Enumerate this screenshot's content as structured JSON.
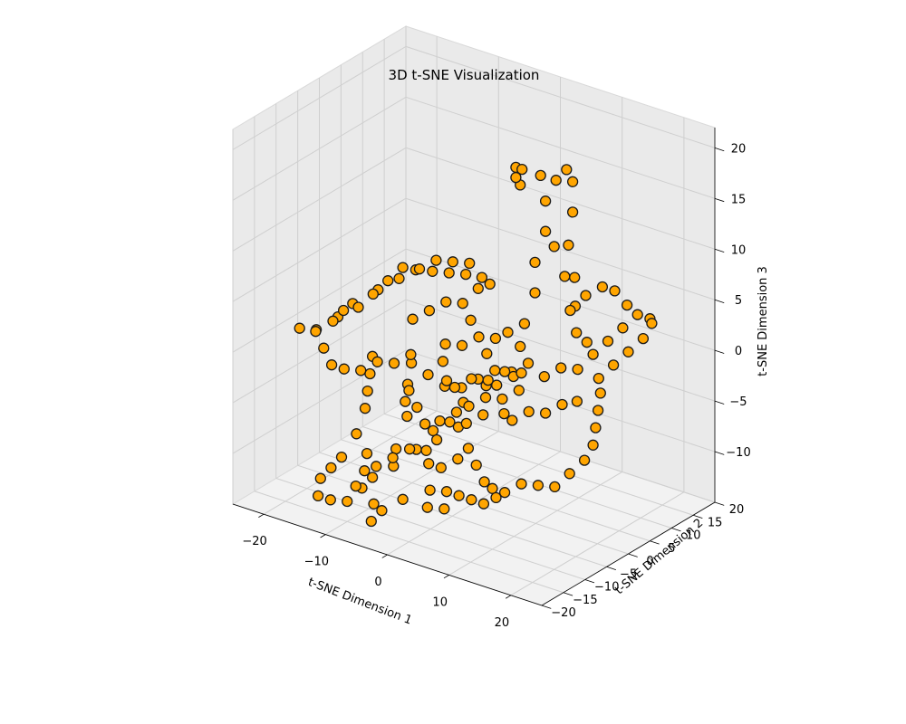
{
  "chart_data": {
    "type": "scatter",
    "projection": "3d",
    "title": "3D t-SNE Visualization",
    "xlabel": "t-SNE Dimension 1",
    "ylabel": "t-SNE Dimension 2",
    "zlabel": "t-SNE Dimension 3",
    "xlim": [
      -25,
      25
    ],
    "ylim": [
      -20,
      20
    ],
    "zlim": [
      -15,
      22
    ],
    "xticks": [
      -20,
      -10,
      0,
      10,
      20
    ],
    "yticks": [
      -20,
      -15,
      -10,
      -5,
      0,
      5,
      10,
      15,
      20
    ],
    "zticks": [
      -10,
      -5,
      0,
      5,
      10,
      15,
      20
    ],
    "grid": true,
    "marker_color": "#FFA500",
    "marker_edge_color": "#1a1a1a",
    "points": [
      [
        -24,
        -6,
        -1
      ],
      [
        -22,
        -5,
        -1
      ],
      [
        -20,
        -4,
        0
      ],
      [
        -19,
        -3,
        1
      ],
      [
        -18,
        -1,
        1
      ],
      [
        -17,
        1,
        2
      ],
      [
        -16,
        3,
        3
      ],
      [
        -15,
        5,
        4
      ],
      [
        -13,
        6,
        4
      ],
      [
        -11,
        7,
        5
      ],
      [
        -9,
        8,
        5
      ],
      [
        -7,
        9,
        5
      ],
      [
        -5,
        9,
        4
      ],
      [
        -3,
        8,
        4
      ],
      [
        -20,
        -8,
        0
      ],
      [
        -18,
        -9,
        -1
      ],
      [
        -16,
        -10,
        -2
      ],
      [
        -14,
        -10,
        -2
      ],
      [
        -12,
        -9,
        -2
      ],
      [
        -10,
        -8,
        -1
      ],
      [
        -8,
        -7,
        -1
      ],
      [
        -6,
        -6,
        0
      ],
      [
        -15,
        -2,
        -3
      ],
      [
        -14,
        -4,
        -4
      ],
      [
        -13,
        -6,
        -5
      ],
      [
        -12,
        -8,
        -6
      ],
      [
        -12,
        -10,
        -8
      ],
      [
        -13,
        -12,
        -10
      ],
      [
        -14,
        -13,
        -11
      ],
      [
        -15,
        -14,
        -12
      ],
      [
        -14,
        -16,
        -13
      ],
      [
        -12,
        -16,
        -13
      ],
      [
        -10,
        -15,
        -13
      ],
      [
        -9,
        -13,
        -12
      ],
      [
        -10,
        -11,
        -11
      ],
      [
        -11,
        -9,
        -10
      ],
      [
        -6,
        -14,
        -9
      ],
      [
        -4,
        -13,
        -8
      ],
      [
        -2,
        -12,
        -7
      ],
      [
        0,
        -11,
        -7
      ],
      [
        1,
        -10,
        -6
      ],
      [
        -5,
        -16,
        -12
      ],
      [
        -4,
        -18,
        -13
      ],
      [
        -3,
        -17,
        -12
      ],
      [
        -1,
        -15,
        -11
      ],
      [
        -8,
        -3,
        -2
      ],
      [
        -6,
        -2,
        -3
      ],
      [
        -4,
        -1,
        -4
      ],
      [
        -2,
        0,
        -4
      ],
      [
        0,
        1,
        -3
      ],
      [
        2,
        2,
        -2
      ],
      [
        4,
        3,
        -2
      ],
      [
        -7,
        -5,
        -4
      ],
      [
        -5,
        -6,
        -5
      ],
      [
        -3,
        -7,
        -6
      ],
      [
        -1,
        -8,
        -6
      ],
      [
        1,
        -7,
        -5
      ],
      [
        3,
        -6,
        -5
      ],
      [
        5,
        -5,
        -4
      ],
      [
        -6,
        2,
        -1
      ],
      [
        -4,
        3,
        -1
      ],
      [
        -2,
        4,
        0
      ],
      [
        0,
        5,
        0
      ],
      [
        2,
        5,
        1
      ],
      [
        4,
        5,
        0
      ],
      [
        6,
        4,
        -1
      ],
      [
        -5,
        0,
        -2
      ],
      [
        -3,
        -2,
        -3
      ],
      [
        -1,
        -3,
        -3
      ],
      [
        1,
        -2,
        -2
      ],
      [
        3,
        -1,
        -2
      ],
      [
        5,
        0,
        -1
      ],
      [
        7,
        1,
        -1
      ],
      [
        -3,
        -9,
        -8
      ],
      [
        -1,
        -9,
        -9
      ],
      [
        1,
        -9,
        -9
      ],
      [
        3,
        -8,
        -8
      ],
      [
        4,
        -7,
        -7
      ],
      [
        -2,
        -5,
        -6
      ],
      [
        0,
        -4,
        -5
      ],
      [
        2,
        -4,
        -4
      ],
      [
        4,
        -3,
        -3
      ],
      [
        6,
        -2,
        -3
      ],
      [
        8,
        -1,
        -2
      ],
      [
        6,
        -8,
        -8
      ],
      [
        8,
        -9,
        -9
      ],
      [
        10,
        -10,
        -9
      ],
      [
        12,
        -10,
        -9
      ],
      [
        14,
        -9,
        -8
      ],
      [
        16,
        -8,
        -8
      ],
      [
        18,
        -7,
        -8
      ],
      [
        19,
        -5,
        -7
      ],
      [
        20,
        -3,
        -6
      ],
      [
        20,
        -1,
        -5
      ],
      [
        19,
        1,
        -4
      ],
      [
        18,
        3,
        -3
      ],
      [
        17,
        5,
        -2
      ],
      [
        16,
        6,
        -1
      ],
      [
        17,
        8,
        0
      ],
      [
        18,
        10,
        1
      ],
      [
        19,
        12,
        2
      ],
      [
        19,
        14,
        3
      ],
      [
        18,
        15,
        3
      ],
      [
        16,
        15,
        3
      ],
      [
        15,
        13,
        2
      ],
      [
        14,
        11,
        1
      ],
      [
        13,
        9,
        0
      ],
      [
        9,
        -4,
        -4
      ],
      [
        11,
        -3,
        -3
      ],
      [
        13,
        -2,
        -3
      ],
      [
        15,
        -1,
        -2
      ],
      [
        16,
        1,
        -2
      ],
      [
        10,
        2,
        -1
      ],
      [
        12,
        3,
        0
      ],
      [
        14,
        4,
        0
      ],
      [
        4,
        6,
        2
      ],
      [
        5,
        7,
        5
      ],
      [
        5,
        7,
        8
      ],
      [
        6,
        8,
        11
      ],
      [
        6,
        8,
        14
      ],
      [
        7,
        9,
        16
      ],
      [
        8,
        10,
        17
      ],
      [
        9,
        10,
        16
      ],
      [
        9,
        10,
        13
      ],
      [
        9,
        9,
        10
      ],
      [
        10,
        9,
        7
      ],
      [
        10,
        8,
        4
      ],
      [
        11,
        8,
        2
      ],
      [
        12,
        9,
        1
      ],
      [
        8,
        12,
        3
      ],
      [
        9,
        13,
        4
      ],
      [
        11,
        14,
        5
      ],
      [
        13,
        14,
        5
      ],
      [
        15,
        14,
        4
      ],
      [
        7,
        11,
        6
      ],
      [
        6,
        10,
        9
      ],
      [
        -3,
        14,
        14
      ],
      [
        -2,
        14,
        14
      ],
      [
        -3,
        14,
        13
      ],
      [
        -3,
        15,
        12
      ],
      [
        1,
        14,
        14
      ],
      [
        -19,
        5,
        1
      ],
      [
        -17,
        7,
        2
      ],
      [
        -15,
        8,
        3
      ],
      [
        -13,
        9,
        3
      ],
      [
        -11,
        10,
        3
      ],
      [
        -9,
        11,
        3
      ],
      [
        -7,
        11,
        2
      ],
      [
        -21,
        2,
        0
      ],
      [
        -22,
        0,
        -1
      ],
      [
        -10,
        -1,
        -5
      ],
      [
        -9,
        -3,
        -6
      ],
      [
        -8,
        -4,
        -7
      ],
      [
        -7,
        -8,
        -9
      ],
      [
        -6,
        -10,
        -10
      ],
      [
        -8,
        -12,
        -11
      ],
      [
        -10,
        -13,
        -12
      ],
      [
        2,
        -13,
        -10
      ],
      [
        4,
        -12,
        -10
      ],
      [
        6,
        -12,
        -10
      ],
      [
        8,
        -12,
        -10
      ],
      [
        10,
        -12,
        -10
      ],
      [
        12,
        -12,
        -9
      ],
      [
        3,
        -15,
        -11
      ],
      [
        5,
        -14,
        -11
      ],
      [
        0,
        3,
        -1
      ],
      [
        2,
        0,
        -3
      ],
      [
        -1,
        -1,
        -5
      ],
      [
        1,
        -5,
        -6
      ],
      [
        3,
        1,
        -3
      ],
      [
        5,
        2,
        -2
      ],
      [
        7,
        -3,
        -4
      ],
      [
        -4,
        5,
        1
      ],
      [
        -6,
        6,
        2
      ],
      [
        -8,
        5,
        2
      ],
      [
        -10,
        4,
        1
      ],
      [
        -12,
        3,
        0
      ]
    ]
  }
}
